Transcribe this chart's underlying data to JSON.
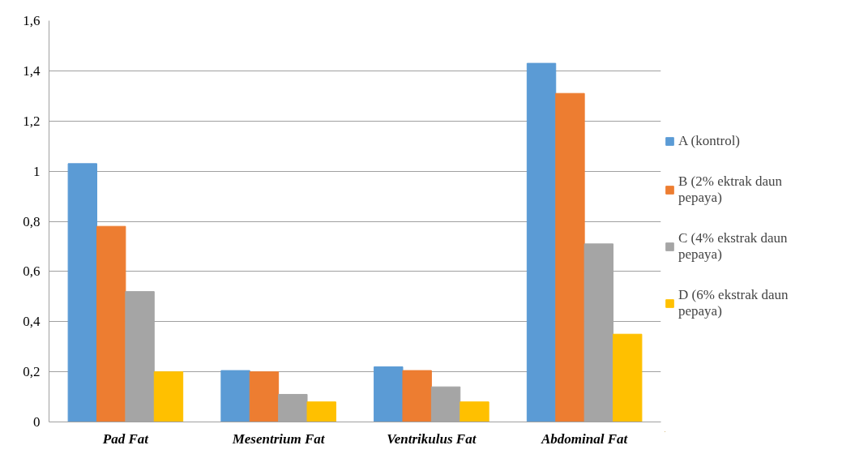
{
  "chart_data": {
    "type": "bar",
    "categories": [
      "Pad Fat",
      "Mesentrium Fat",
      "Ventrikulus Fat",
      "Abdominal Fat"
    ],
    "series": [
      {
        "name": "A (kontrol)",
        "color": "#5b9bd5",
        "values": [
          1.03,
          0.205,
          0.22,
          1.43
        ]
      },
      {
        "name": "B (2% ektrak daun pepaya)",
        "color": "#ed7d31",
        "values": [
          0.78,
          0.2,
          0.205,
          1.31
        ]
      },
      {
        "name": "C (4% ekstrak daun pepaya)",
        "color": "#a5a5a5",
        "values": [
          0.52,
          0.11,
          0.14,
          0.71
        ]
      },
      {
        "name": "D (6% ekstrak daun pepaya)",
        "color": "#ffc000",
        "values": [
          0.2,
          0.08,
          0.08,
          0.35
        ]
      }
    ],
    "ylim": [
      0,
      1.6
    ],
    "yticks": [
      0,
      {
        "value": 0.2,
        "label": "0,2"
      },
      {
        "value": 0.4,
        "label": "0,4"
      },
      {
        "value": 0.6,
        "label": "0,6"
      },
      {
        "value": 0.8,
        "label": "0,8"
      },
      1,
      {
        "value": 1.2,
        "label": "1,2"
      },
      {
        "value": 1.4,
        "label": "1,4"
      },
      {
        "value": 1.6,
        "label": "1,6"
      }
    ],
    "grid": "y",
    "legend": "right"
  }
}
